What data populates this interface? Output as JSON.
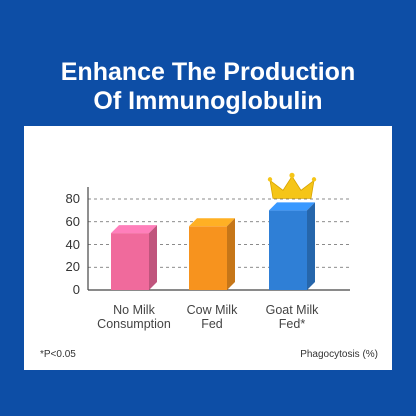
{
  "title": {
    "line1": "Enhance The Production",
    "line2": "Of Immunoglobulin"
  },
  "chart_data": {
    "type": "bar",
    "categories": [
      "No Milk\nConsumption",
      "Cow Milk\nFed",
      "Goat Milk\nFed*"
    ],
    "values": [
      50,
      56,
      70
    ],
    "ylim": [
      0,
      80
    ],
    "yticks": [
      0,
      20,
      40,
      60,
      80
    ],
    "grid": "dashed",
    "ylabel": "",
    "xlabel": "",
    "colors": [
      "#f06a9c",
      "#f7931e",
      "#2f7fd6"
    ],
    "highlight": {
      "category_index": 2,
      "icon": "crown-icon"
    }
  },
  "footnote": "*P<0.05",
  "metric_label": "Phagocytosis (%)",
  "colors": {
    "background": "#0d4ea6",
    "card": "#ffffff",
    "crown": "#f5c518"
  }
}
